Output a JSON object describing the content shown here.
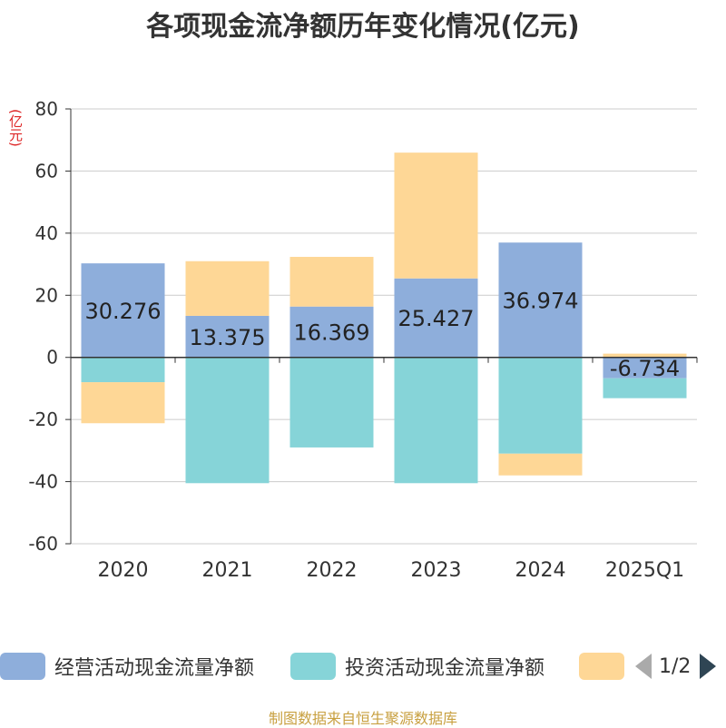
{
  "chart_data": {
    "type": "bar",
    "stacked": true,
    "title": "各项现金流净额历年变化情况(亿元)",
    "ylabel": "(亿元)",
    "ylim": [
      -60,
      80
    ],
    "yticks": [
      80,
      60,
      40,
      20,
      0,
      -20,
      -40,
      -60
    ],
    "categories": [
      "2020",
      "2021",
      "2022",
      "2023",
      "2024",
      "2025Q1"
    ],
    "series": [
      {
        "name": "经营活动现金流量净额",
        "color": "#8eaedb",
        "values": [
          30.276,
          13.375,
          16.369,
          25.427,
          36.974,
          -6.734
        ],
        "labels": [
          "30.276",
          "13.375",
          "16.369",
          "25.427",
          "36.974",
          "-6.734"
        ]
      },
      {
        "name": "投资活动现金流量净额",
        "color": "#86d4d8",
        "values": [
          -8,
          -40.5,
          -29,
          -40.5,
          -31,
          -6.4
        ]
      },
      {
        "name": "",
        "color": "#fed796",
        "values": [
          -13.2,
          17.6,
          16,
          40.5,
          -7,
          1.2
        ]
      }
    ],
    "grid": true,
    "legend_position": "bottom",
    "pagination": "1/2"
  },
  "source": "制图数据来自恒生聚源数据库"
}
